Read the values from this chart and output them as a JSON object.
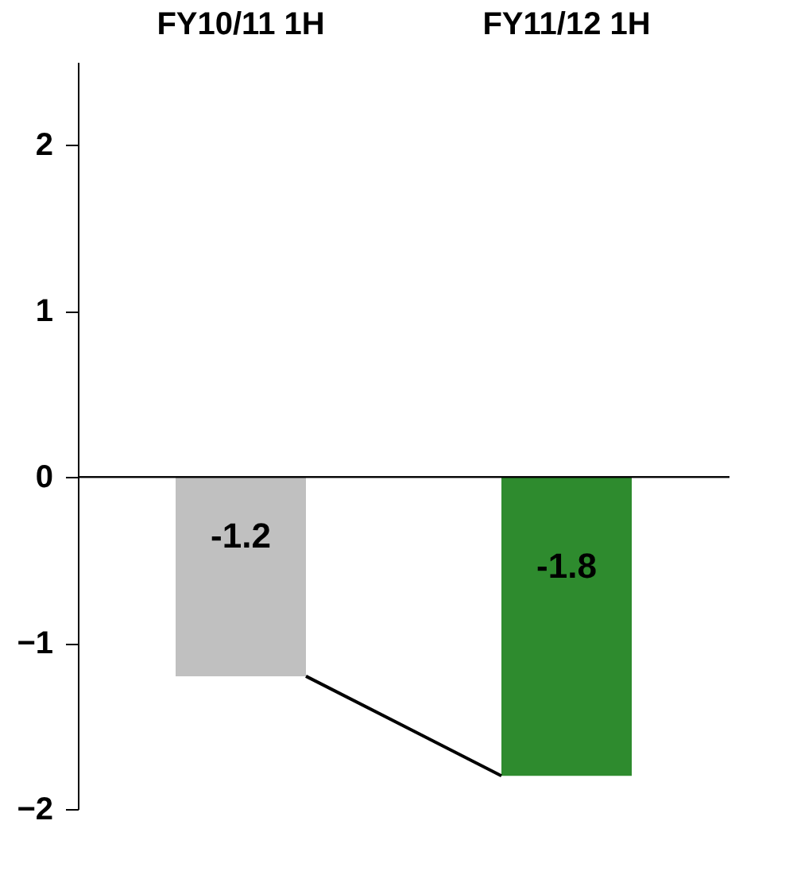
{
  "chart_data": {
    "type": "bar",
    "categories": [
      "FY10/11 1H",
      "FY11/12 1H"
    ],
    "values": [
      -1.2,
      -1.8
    ],
    "colors": [
      "#c0c0c0",
      "#2e8b2e"
    ],
    "ylim": [
      -2,
      2.5
    ],
    "yticks": [
      -2,
      -1,
      0,
      1,
      2
    ],
    "data_labels": true
  }
}
